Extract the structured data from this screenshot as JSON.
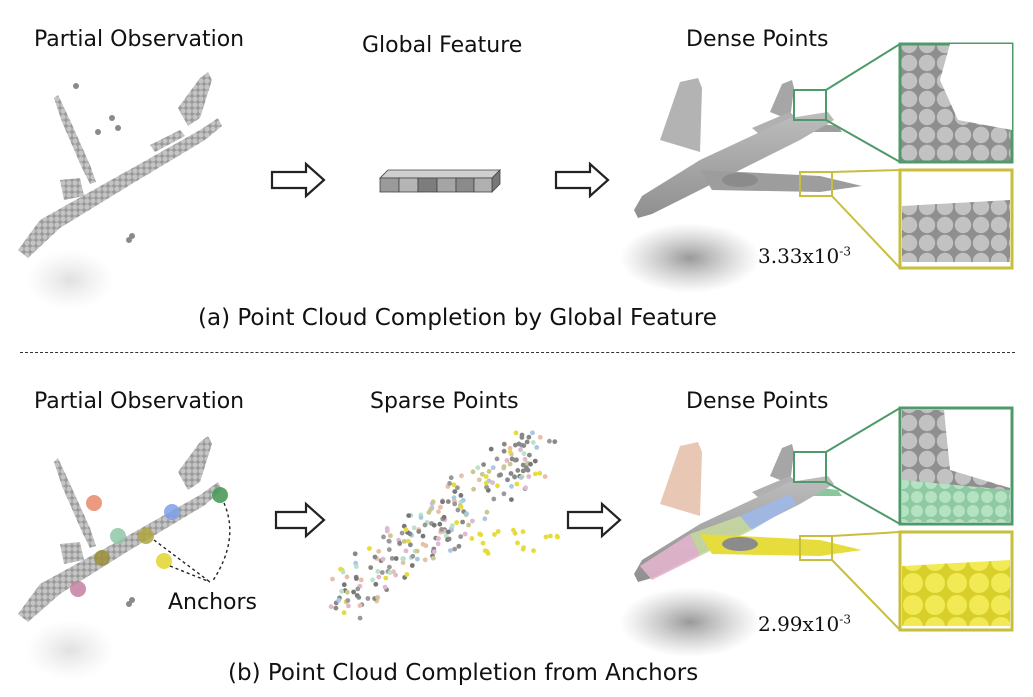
{
  "panel_a": {
    "label_partial": "Partial Observation",
    "label_middle": "Global Feature",
    "label_dense": "Dense Points",
    "metric_base": "3.33x10",
    "metric_exp": "-3",
    "caption": "(a) Point Cloud Completion by Global Feature"
  },
  "panel_b": {
    "label_partial": "Partial Observation",
    "label_middle": "Sparse Points",
    "label_dense": "Dense Points",
    "anchors_label": "Anchors",
    "metric_base": "2.99x10",
    "metric_exp": "-3",
    "caption": "(b) Point Cloud Completion from Anchors"
  },
  "colors": {
    "green_zoom": "#4f9a6a",
    "yellow_zoom": "#c9bd3c",
    "point_gray": "#8c8c8c",
    "anchor_orange": "#e8896a",
    "anchor_teal": "#8fc7a8",
    "anchor_blue": "#7f9fe8",
    "anchor_olive": "#b0a540",
    "anchor_yellow": "#e3d63a",
    "anchor_green": "#4a9a5a",
    "anchor_pink": "#c480a0"
  }
}
